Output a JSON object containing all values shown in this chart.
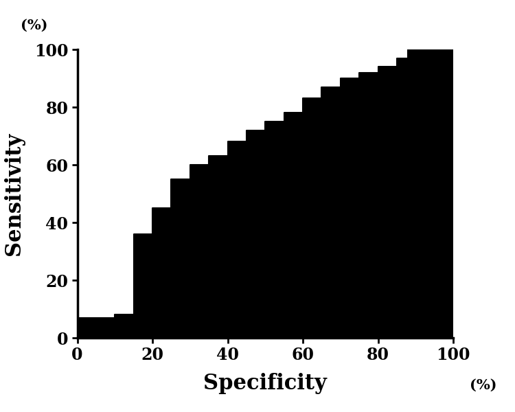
{
  "roc_points": [
    [
      0,
      0
    ],
    [
      0,
      7
    ],
    [
      10,
      7
    ],
    [
      10,
      8
    ],
    [
      15,
      8
    ],
    [
      15,
      36
    ],
    [
      20,
      36
    ],
    [
      20,
      45
    ],
    [
      25,
      45
    ],
    [
      25,
      55
    ],
    [
      30,
      55
    ],
    [
      30,
      60
    ],
    [
      35,
      60
    ],
    [
      35,
      63
    ],
    [
      40,
      63
    ],
    [
      40,
      68
    ],
    [
      45,
      68
    ],
    [
      45,
      72
    ],
    [
      50,
      72
    ],
    [
      50,
      75
    ],
    [
      55,
      75
    ],
    [
      55,
      78
    ],
    [
      60,
      78
    ],
    [
      60,
      83
    ],
    [
      65,
      83
    ],
    [
      65,
      87
    ],
    [
      70,
      87
    ],
    [
      70,
      90
    ],
    [
      75,
      90
    ],
    [
      75,
      92
    ],
    [
      80,
      92
    ],
    [
      80,
      94
    ],
    [
      85,
      94
    ],
    [
      85,
      97
    ],
    [
      88,
      97
    ],
    [
      88,
      100
    ],
    [
      100,
      100
    ]
  ],
  "xlabel": "Specificity",
  "ylabel": "Sensitivity",
  "xlabel_pct": "(%)",
  "ylabel_pct": "(%)",
  "xlim": [
    0,
    100
  ],
  "ylim": [
    0,
    100
  ],
  "xticks": [
    0,
    20,
    40,
    60,
    80,
    100
  ],
  "yticks": [
    0,
    20,
    40,
    60,
    80,
    100
  ],
  "fill_color": "#000000",
  "line_color": "#000000",
  "background_color": "#ffffff",
  "tick_fontsize": 17,
  "label_fontsize": 22,
  "pct_fontsize": 15
}
